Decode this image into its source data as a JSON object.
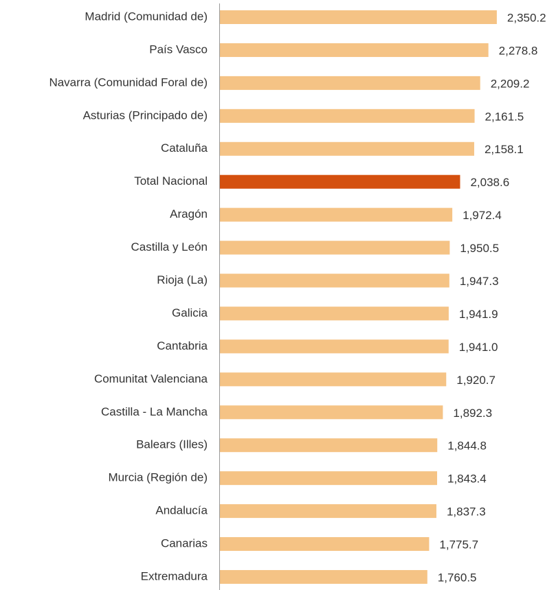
{
  "chart_data": {
    "type": "barh",
    "categories": [
      "Madrid (Comunidad de)",
      "País Vasco",
      "Navarra (Comunidad Foral de)",
      "Asturias (Principado de)",
      "Cataluña",
      "Total Nacional",
      "Aragón",
      "Castilla y León",
      "Rioja (La)",
      "Galicia",
      "Cantabria",
      "Comunitat Valenciana",
      "Castilla - La Mancha",
      "Balears (Illes)",
      "Murcia (Región de)",
      "Andalucía",
      "Canarias",
      "Extremadura"
    ],
    "values": [
      2350.2,
      2278.8,
      2209.2,
      2161.5,
      2158.1,
      2038.6,
      1972.4,
      1950.5,
      1947.3,
      1941.9,
      1941.0,
      1920.7,
      1892.3,
      1844.8,
      1843.4,
      1837.3,
      1775.7,
      1760.5
    ],
    "value_labels": [
      "2,350.2",
      "2,278.8",
      "2,209.2",
      "2,161.5",
      "2,158.1",
      "2,038.6",
      "1,972.4",
      "1,950.5",
      "1,947.3",
      "1,941.9",
      "1,941.0",
      "1,920.7",
      "1,892.3",
      "1,844.8",
      "1,843.4",
      "1,837.3",
      "1,775.7",
      "1,760.5"
    ],
    "colors": [
      "#f5c385",
      "#f5c385",
      "#f5c385",
      "#f5c385",
      "#f5c385",
      "#d4500f",
      "#f5c385",
      "#f5c385",
      "#f5c385",
      "#f5c385",
      "#f5c385",
      "#f5c385",
      "#f5c385",
      "#f5c385",
      "#f5c385",
      "#f5c385",
      "#f5c385",
      "#f5c385"
    ],
    "xlim": [
      0,
      2800
    ]
  }
}
